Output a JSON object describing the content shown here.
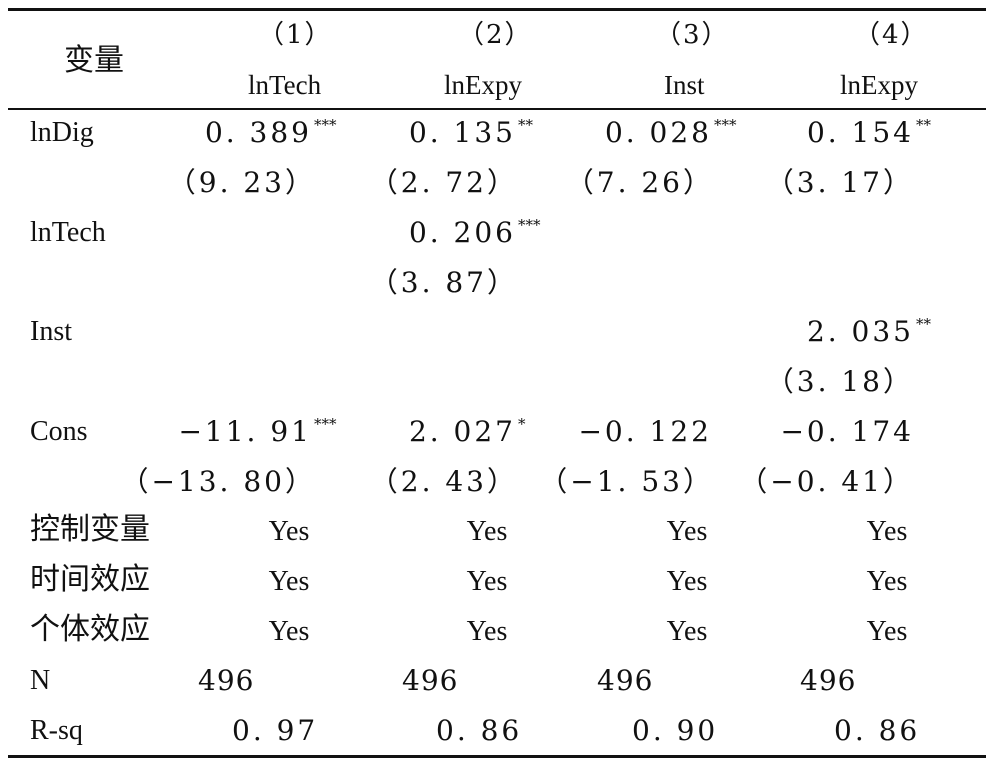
{
  "header": {
    "variable_label": "变量",
    "columns": [
      {
        "number": "（1）",
        "dependent": "lnTech"
      },
      {
        "number": "（2）",
        "dependent": "lnExpy"
      },
      {
        "number": "（3）",
        "dependent": "Inst"
      },
      {
        "number": "（4）",
        "dependent": "lnExpy"
      }
    ]
  },
  "rows": [
    {
      "label": "lnDig",
      "coef": [
        {
          "v": "0. 389",
          "s": "***"
        },
        {
          "v": "0. 135",
          "s": "**"
        },
        {
          "v": "0. 028",
          "s": "***"
        },
        {
          "v": "0. 154",
          "s": "**"
        }
      ],
      "t": [
        "（9. 23）",
        "（2. 72）",
        "（7. 26）",
        "（3. 17）"
      ]
    },
    {
      "label": "lnTech",
      "coef": [
        null,
        {
          "v": "0. 206",
          "s": "***"
        },
        null,
        null
      ],
      "t": [
        null,
        "（3. 87）",
        null,
        null
      ]
    },
    {
      "label": "Inst",
      "coef": [
        null,
        null,
        null,
        {
          "v": "2. 035",
          "s": "**"
        }
      ],
      "t": [
        null,
        null,
        null,
        "（3. 18）"
      ]
    },
    {
      "label": "Cons",
      "coef": [
        {
          "v": "−11. 91",
          "s": "***"
        },
        {
          "v": "2. 027",
          "s": "*"
        },
        {
          "v": "−0. 122",
          "s": ""
        },
        {
          "v": "−0. 174",
          "s": ""
        }
      ],
      "t": [
        "（−13. 80）",
        "（2. 43）",
        "（−1. 53）",
        "（−0. 41）"
      ]
    }
  ],
  "controls": [
    {
      "label": "控制变量",
      "values": [
        "Yes",
        "Yes",
        "Yes",
        "Yes"
      ]
    },
    {
      "label": "时间效应",
      "values": [
        "Yes",
        "Yes",
        "Yes",
        "Yes"
      ]
    },
    {
      "label": "个体效应",
      "values": [
        "Yes",
        "Yes",
        "Yes",
        "Yes"
      ]
    }
  ],
  "n": {
    "label": "N",
    "values": [
      "496",
      "496",
      "496",
      "496"
    ]
  },
  "rsq": {
    "label": "R-sq",
    "values": [
      "0. 97",
      "0. 86",
      "0. 90",
      "0. 86"
    ]
  }
}
